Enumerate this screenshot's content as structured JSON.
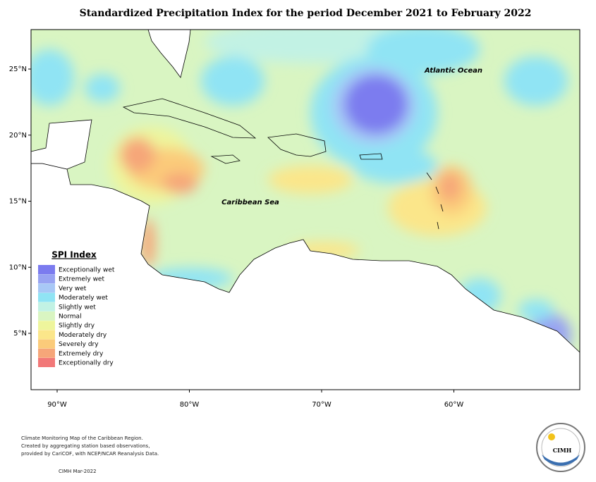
{
  "title": "Standardized Precipitation Index for the period December 2021 to February 2022",
  "map": {
    "lat_ticks": [
      {
        "value": 25,
        "label": "25°N"
      },
      {
        "value": 20,
        "label": "20°N"
      },
      {
        "value": 15,
        "label": "15°N"
      },
      {
        "value": 10,
        "label": "10°N"
      },
      {
        "value": 5,
        "label": "5°N"
      }
    ],
    "lon_ticks": [
      {
        "value": -90,
        "label": "90°W"
      },
      {
        "value": -80,
        "label": "80°W"
      },
      {
        "value": -70,
        "label": "70°W"
      },
      {
        "value": -60,
        "label": "60°W"
      }
    ],
    "labels": [
      "Caribbean Sea",
      "Atlantic Ocean"
    ]
  },
  "legend": {
    "title": "SPI Index",
    "items": [
      {
        "name": "Exceptionally wet",
        "color": "#7b7bef"
      },
      {
        "name": "Extremely wet",
        "color": "#98a3f2"
      },
      {
        "name": "Very wet",
        "color": "#a8c8f6"
      },
      {
        "name": "Moderately wet",
        "color": "#90e4f4"
      },
      {
        "name": "Slightly wet",
        "color": "#c2f2e4"
      },
      {
        "name": "Normal",
        "color": "#d9f5c2"
      },
      {
        "name": "Slightly dry",
        "color": "#eef59c"
      },
      {
        "name": "Moderately dry",
        "color": "#fbe68a"
      },
      {
        "name": "Severely dry",
        "color": "#fbcb7a"
      },
      {
        "name": "Extremely dry",
        "color": "#f6a679"
      },
      {
        "name": "Exceptionally dry",
        "color": "#f27878"
      }
    ]
  },
  "footer": {
    "lines": [
      "Climate Monitoring Map of the Caribbean Region.",
      "Created by aggregating station based observations,",
      "provided by CariCOF, with NCEP/NCAR Reanalysis Data."
    ],
    "credit": "CIMH Mar-2022"
  },
  "logo": {
    "text": "CIMH"
  }
}
